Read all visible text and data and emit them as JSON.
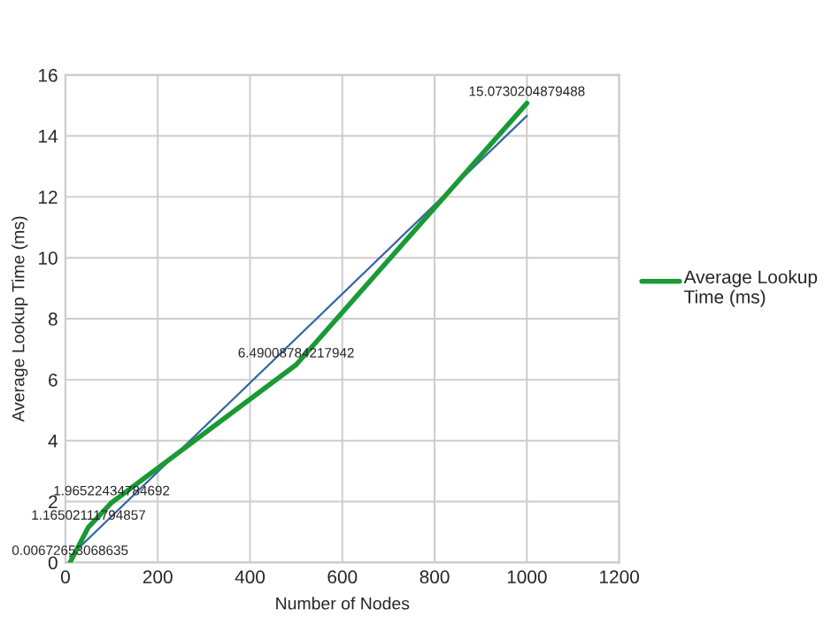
{
  "chart_data": {
    "type": "line",
    "xlabel": "Number of Nodes",
    "ylabel": "Average Lookup Time (ms)",
    "xlim": [
      0,
      1200
    ],
    "xticks": [
      0,
      200,
      400,
      600,
      800,
      1000,
      1200
    ],
    "ylim": [
      0,
      16
    ],
    "yticks": [
      0,
      2,
      4,
      6,
      8,
      10,
      12,
      14,
      16
    ],
    "grid": true,
    "legend": "right",
    "series": [
      {
        "name": "Average Lookup Time (ms)",
        "color": "#1a9a35",
        "x": [
          10,
          50,
          100,
          500,
          1000
        ],
        "values": [
          0.00672653068635,
          1.16502111794857,
          1.96522434784692,
          6.49008784217942,
          15.0730204879488
        ],
        "value_labels": [
          "0.00672653068635",
          "1.16502111794857",
          "1.96522434784692",
          "6.49008784217942",
          "15.0730204879488"
        ]
      },
      {
        "type": "line",
        "color": "#3465a4",
        "x": [
          10,
          1000
        ],
        "values": [
          0.2,
          14.66
        ]
      }
    ]
  }
}
